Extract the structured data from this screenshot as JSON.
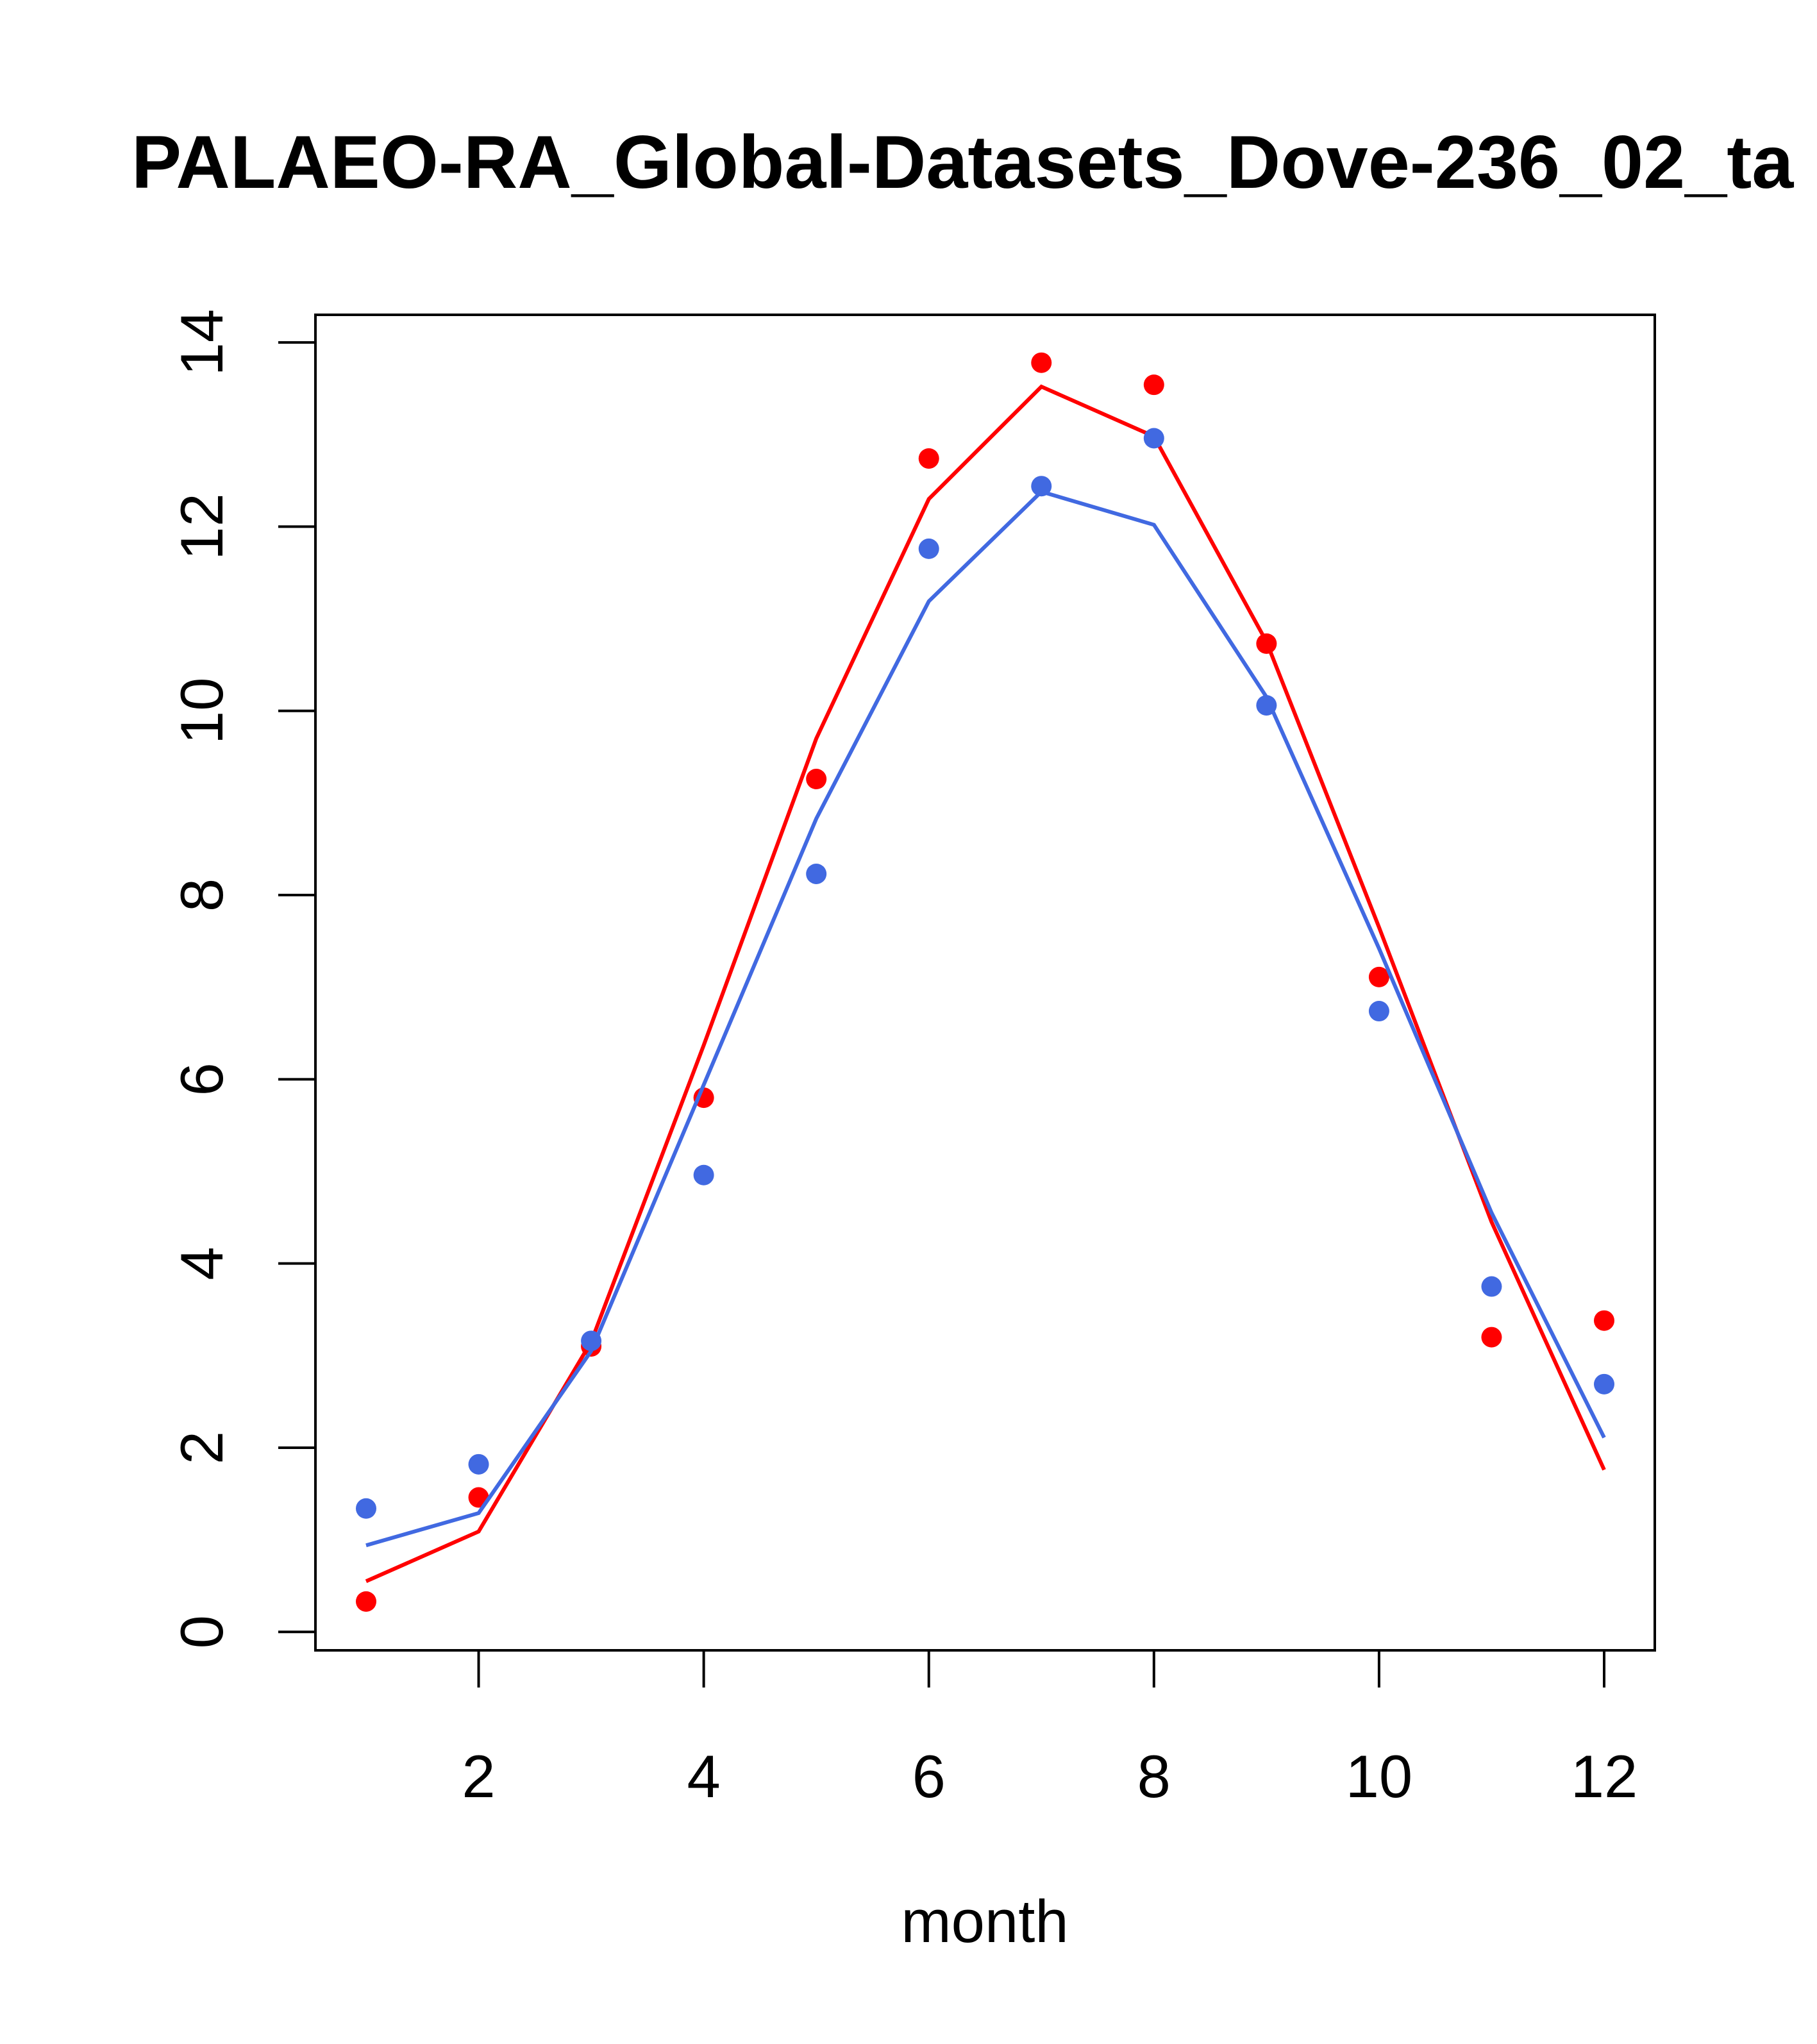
{
  "chart_data": {
    "type": "line",
    "title": "PALAEO-RA_Global-Datasets_Dove-236_02_ta",
    "xlabel": "month",
    "ylabel": "",
    "xlim": [
      0.55,
      12.45
    ],
    "ylim": [
      -0.2,
      14.3
    ],
    "x_ticks": [
      2,
      4,
      6,
      8,
      10,
      12
    ],
    "y_ticks": [
      0,
      2,
      4,
      6,
      8,
      10,
      12,
      14
    ],
    "grid": false,
    "legend": "none",
    "x": [
      1,
      2,
      3,
      4,
      5,
      6,
      7,
      8,
      9,
      10,
      11,
      12
    ],
    "series": [
      {
        "color": "#ff0000",
        "points": [
          0.33,
          1.46,
          3.1,
          5.8,
          9.26,
          12.74,
          13.78,
          13.54,
          10.73,
          7.11,
          3.2,
          3.38
        ],
        "line": [
          0.55,
          1.09,
          3.15,
          6.37,
          9.7,
          12.3,
          13.52,
          12.98,
          10.75,
          7.65,
          4.45,
          1.76
        ]
      },
      {
        "color": "#4169e1",
        "points": [
          1.34,
          1.82,
          3.16,
          4.96,
          8.23,
          11.76,
          12.44,
          12.96,
          10.06,
          6.74,
          3.75,
          2.69
        ],
        "line": [
          0.94,
          1.29,
          3.05,
          5.94,
          8.83,
          11.19,
          12.38,
          12.02,
          10.15,
          7.42,
          4.55,
          2.11
        ]
      }
    ]
  }
}
